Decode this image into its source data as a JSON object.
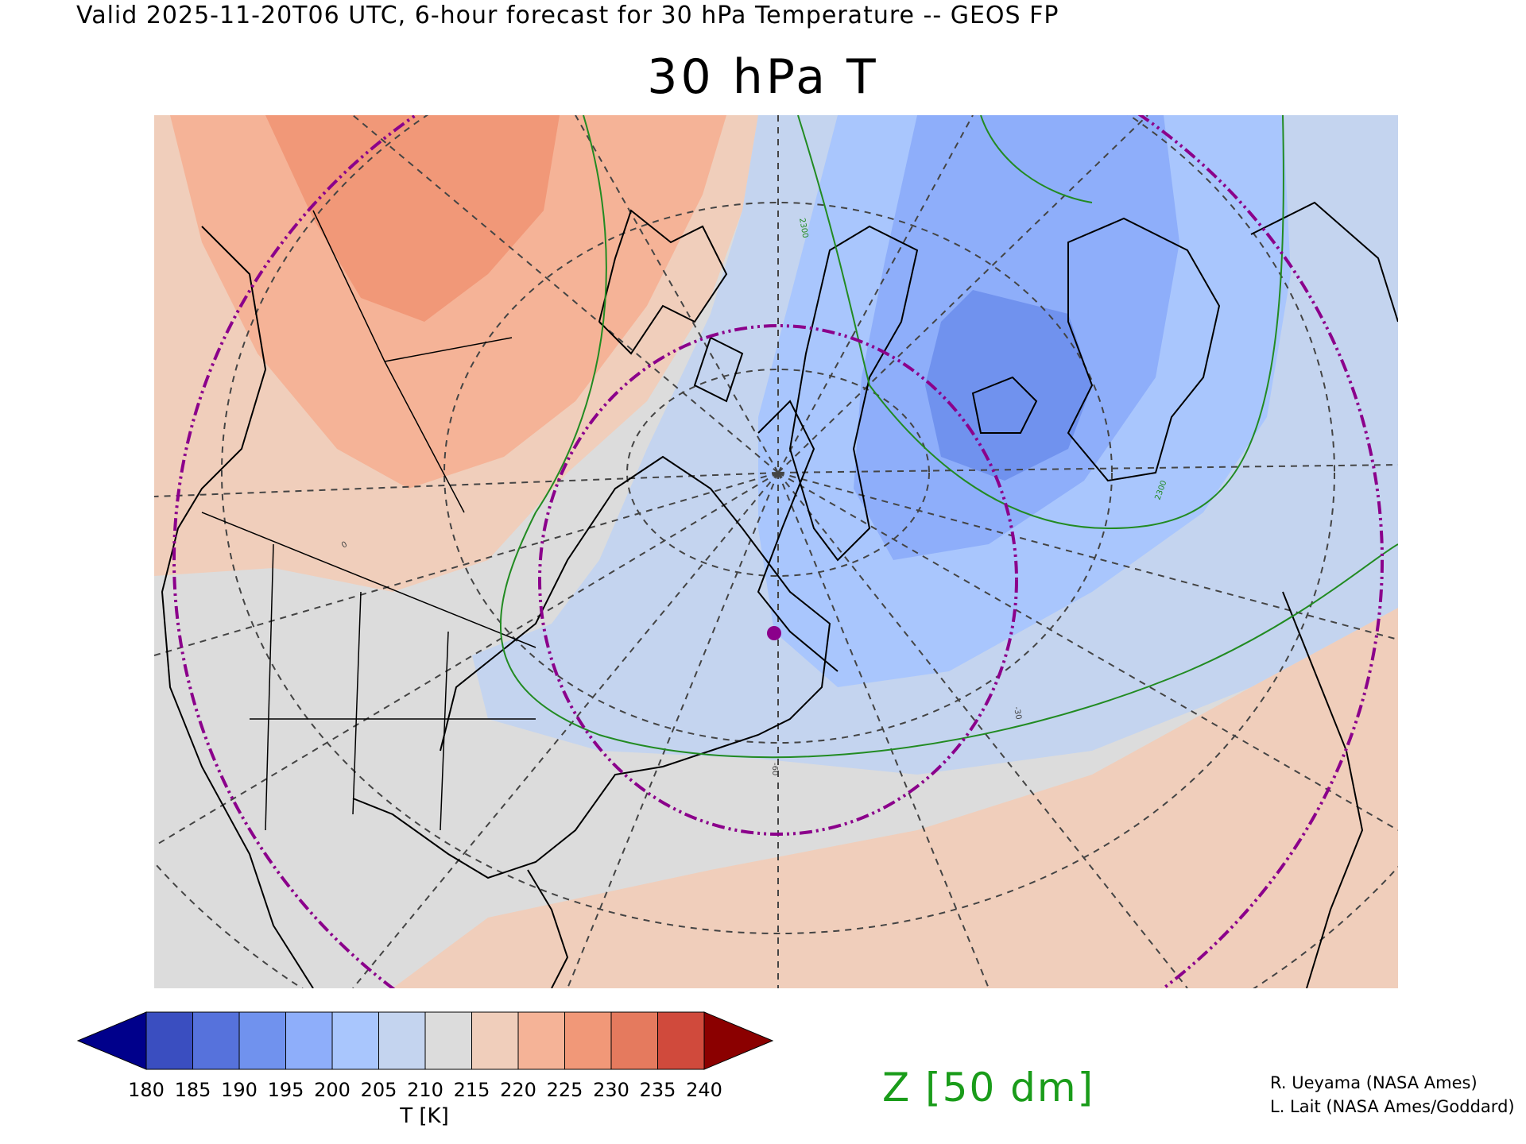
{
  "header": {
    "valid_line": "Valid 2025-11-20T06 UTC, 6-hour forecast for 30 hPa Temperature -- GEOS FP",
    "title": "30 hPa T"
  },
  "map": {
    "variable": "temperature",
    "level": "30 hPa",
    "contour_labels": [
      "2300",
      "2300",
      "-60",
      "-30",
      "0"
    ],
    "marker_color": "#8b008b",
    "circle_color": "#8b008b",
    "contour_color": "#228b22"
  },
  "colorbar": {
    "title": "T [K]",
    "ticks": [
      "180",
      "185",
      "190",
      "195",
      "200",
      "205",
      "210",
      "215",
      "220",
      "225",
      "230",
      "235",
      "240"
    ],
    "colors": [
      "#3a4ec0",
      "#5672dc",
      "#7092ee",
      "#8eaefa",
      "#a9c6fd",
      "#c4d4ef",
      "#dcdcdc",
      "#f0cebb",
      "#f5b397",
      "#f19878",
      "#e57a5e",
      "#d04a3c"
    ],
    "under_color": "#00008b",
    "over_color": "#8b0000"
  },
  "legend": {
    "z_label": "Z [50 dm]"
  },
  "credits": {
    "line1": "R. Ueyama (NASA Ames)",
    "line2": "L. Lait (NASA Ames/Goddard)"
  }
}
